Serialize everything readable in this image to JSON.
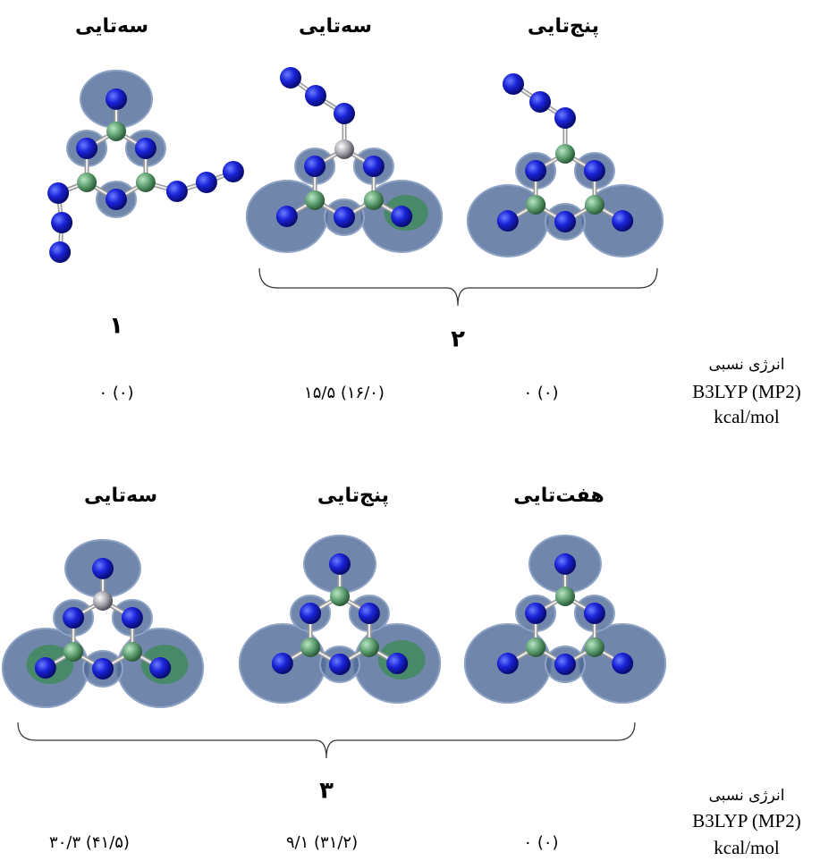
{
  "top": {
    "structures": [
      {
        "label": "سه‌تایی"
      },
      {
        "label": "سه‌تایی"
      },
      {
        "label": "پنج‌تایی"
      }
    ],
    "compounds": [
      "۱",
      "۲"
    ],
    "energies": [
      "۰ (۰)",
      "۱۵/۵ (۱۶/۰)",
      "۰ (۰)"
    ],
    "energy_header": [
      "انرژی نسبی",
      "B3LYP (MP2)",
      "kcal/mol"
    ]
  },
  "bottom": {
    "structures": [
      {
        "label": "سه‌تایی"
      },
      {
        "label": "پنج‌تایی"
      },
      {
        "label": "هفت‌تایی"
      }
    ],
    "compounds": [
      "۳"
    ],
    "energies": [
      "۳۰/۳ (۴۱/۵)",
      "۹/۱ (۳۱/۲)",
      "۰ (۰)"
    ],
    "energy_header": [
      "انرژی نسبی",
      "B3LYP (MP2)",
      "kcal/mol"
    ]
  }
}
